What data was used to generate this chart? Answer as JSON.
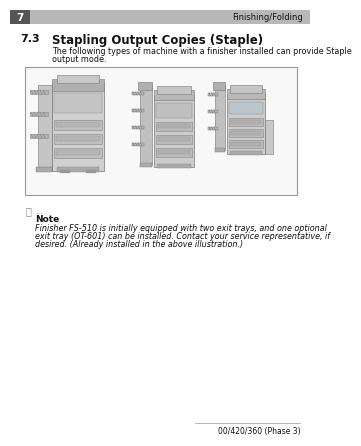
{
  "page_number": "7",
  "header_right": "Finishing/Folding",
  "section": "7.3",
  "section_title": "Stapling Output Copies (Staple)",
  "intro_line1": "The following types of machine with a finisher installed can provide Staple",
  "intro_line2": "output mode.",
  "note_dots": "...",
  "note_label": "Note",
  "note_line1": "Finisher FS-510 is initially equipped with two exit trays, and one optional",
  "note_line2": "exit tray (OT-601) can be installed. Contact your service representative, if",
  "note_line3": "desired. (Already installed in the above illustration.)",
  "footer_text": "00/420/360 (Phase 3)",
  "bg_color": "#ffffff",
  "header_bar_color": "#b8b8b8",
  "page_num_bg": "#555555",
  "box_border_color": "#999999",
  "text_color": "#111111",
  "gray_light": "#e8e8e8",
  "machine_body": "#cccccc",
  "machine_dark": "#888888",
  "machine_mid": "#aaaaaa",
  "finisher_dark": "#666666"
}
